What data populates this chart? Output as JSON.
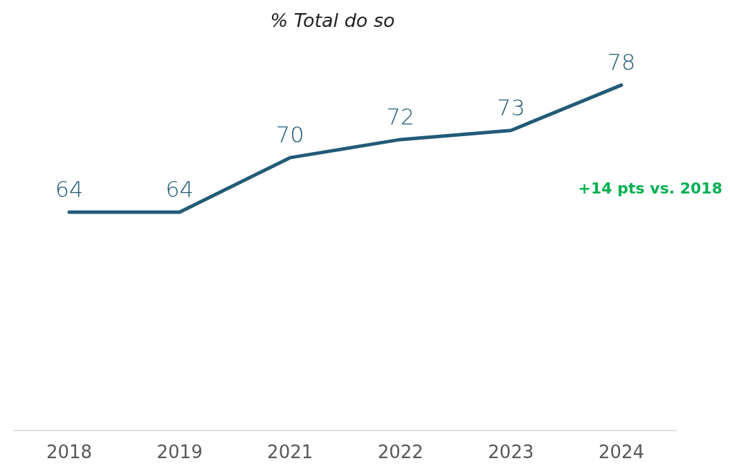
{
  "chart_data": {
    "type": "line",
    "title": "% Total do so",
    "categories": [
      "2018",
      "2019",
      "2021",
      "2022",
      "2023",
      "2024"
    ],
    "series": [
      {
        "color": "#215b77",
        "values": [
          64,
          64,
          70,
          72,
          73,
          78
        ]
      }
    ],
    "data_labels": true,
    "annotations": [
      "+14 pts vs. 2018"
    ]
  }
}
